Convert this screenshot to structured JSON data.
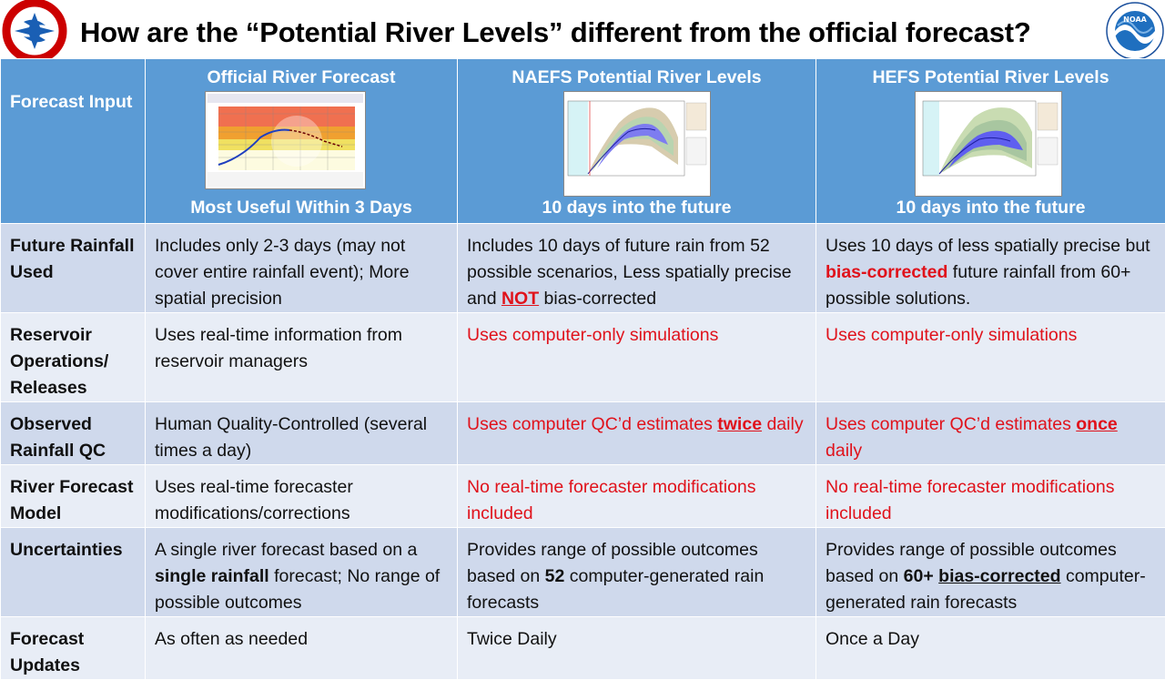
{
  "title": "How are the “Potential River Levels” different from the official forecast?",
  "logos": {
    "left": "nws-logo-icon",
    "right": "noaa-logo-icon",
    "left_ring_text": "NATIONAL WEATHER SERVICE",
    "right_text": "NOAA"
  },
  "colors": {
    "header_blue": "#5b9bd5",
    "row_dark": "#cfd9ec",
    "row_light": "#e8edf6",
    "emphasis_red": "#e0121b"
  },
  "header": {
    "label": "Forecast Input",
    "columns": [
      {
        "title": "Official River Forecast",
        "subtitle": "Most Useful Within 3 Days"
      },
      {
        "title": "NAEFS Potential River Levels",
        "subtitle": "10 days into the future"
      },
      {
        "title": "HEFS Potential River Levels",
        "subtitle": "10 days into the future"
      }
    ]
  },
  "rows": [
    {
      "label": "Future Rainfall Used",
      "official": "Includes only 2-3 days (may not cover entire rainfall event); More spatial precision",
      "naefs_a": "Includes 10 days of future rain from 52 possible scenarios, Less spatially precise and ",
      "naefs_not": "NOT",
      "naefs_b": " bias-corrected",
      "hefs_a": "Uses 10 days of less spatially precise but ",
      "hefs_bias": "bias-corrected",
      "hefs_b": " future rainfall from 60+ possible solutions."
    },
    {
      "label": "Reservoir Operations/ Releases",
      "official": "Uses real-time information from reservoir managers",
      "naefs": "Uses computer-only simulations",
      "hefs": "Uses computer-only simulations"
    },
    {
      "label": "Observed Rainfall QC",
      "official": "Human Quality-Controlled (several times a day)",
      "naefs_a": "Uses computer QC’d estimates ",
      "naefs_em": "twice",
      "naefs_b": " daily",
      "hefs_a": "Uses computer QC’d estimates ",
      "hefs_em": "once",
      "hefs_b": " daily"
    },
    {
      "label": "River Forecast Model",
      "official": "Uses real-time forecaster modifications/corrections",
      "naefs": "No real-time forecaster modifications included",
      "hefs": "No real-time forecaster modifications included"
    },
    {
      "label": "Uncertainties",
      "official_a": "A single river forecast based on a ",
      "official_em": "single rainfall",
      "official_b": " forecast;  No range of possible outcomes",
      "naefs_a": "Provides range of possible outcomes based on ",
      "naefs_em": "52",
      "naefs_b": " computer-generated rain forecasts",
      "hefs_a": "Provides range of possible outcomes based on ",
      "hefs_em1": "60+",
      "hefs_mid": " ",
      "hefs_em2": "bias-corrected",
      "hefs_b": " computer-generated rain forecasts"
    },
    {
      "label": "Forecast Updates",
      "official": "As often as needed",
      "naefs": "Twice Daily",
      "hefs": "Once a Day"
    }
  ]
}
